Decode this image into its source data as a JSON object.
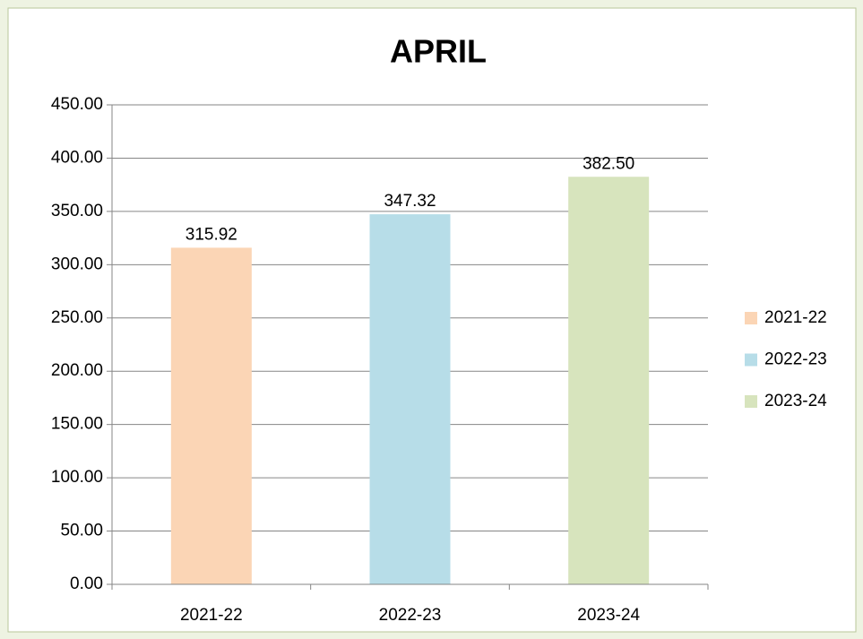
{
  "chart_data": {
    "type": "bar",
    "title": "APRIL",
    "categories": [
      "2021-22",
      "2022-23",
      "2023-24"
    ],
    "values": [
      315.92,
      347.32,
      382.5
    ],
    "value_labels": [
      "315.92",
      "347.32",
      "382.50"
    ],
    "colors": [
      "#fbd5b5",
      "#b7dde8",
      "#d7e4bd"
    ],
    "ylim": [
      0,
      450
    ],
    "yticks": [
      {
        "value": 0,
        "label": "0.00"
      },
      {
        "value": 50,
        "label": "50.00"
      },
      {
        "value": 100,
        "label": "100.00"
      },
      {
        "value": 150,
        "label": "150.00"
      },
      {
        "value": 200,
        "label": "200.00"
      },
      {
        "value": 250,
        "label": "250.00"
      },
      {
        "value": 300,
        "label": "300.00"
      },
      {
        "value": 350,
        "label": "350.00"
      },
      {
        "value": 400,
        "label": "400.00"
      },
      {
        "value": 450,
        "label": "450.00"
      }
    ],
    "grid": true,
    "legend": "right"
  }
}
